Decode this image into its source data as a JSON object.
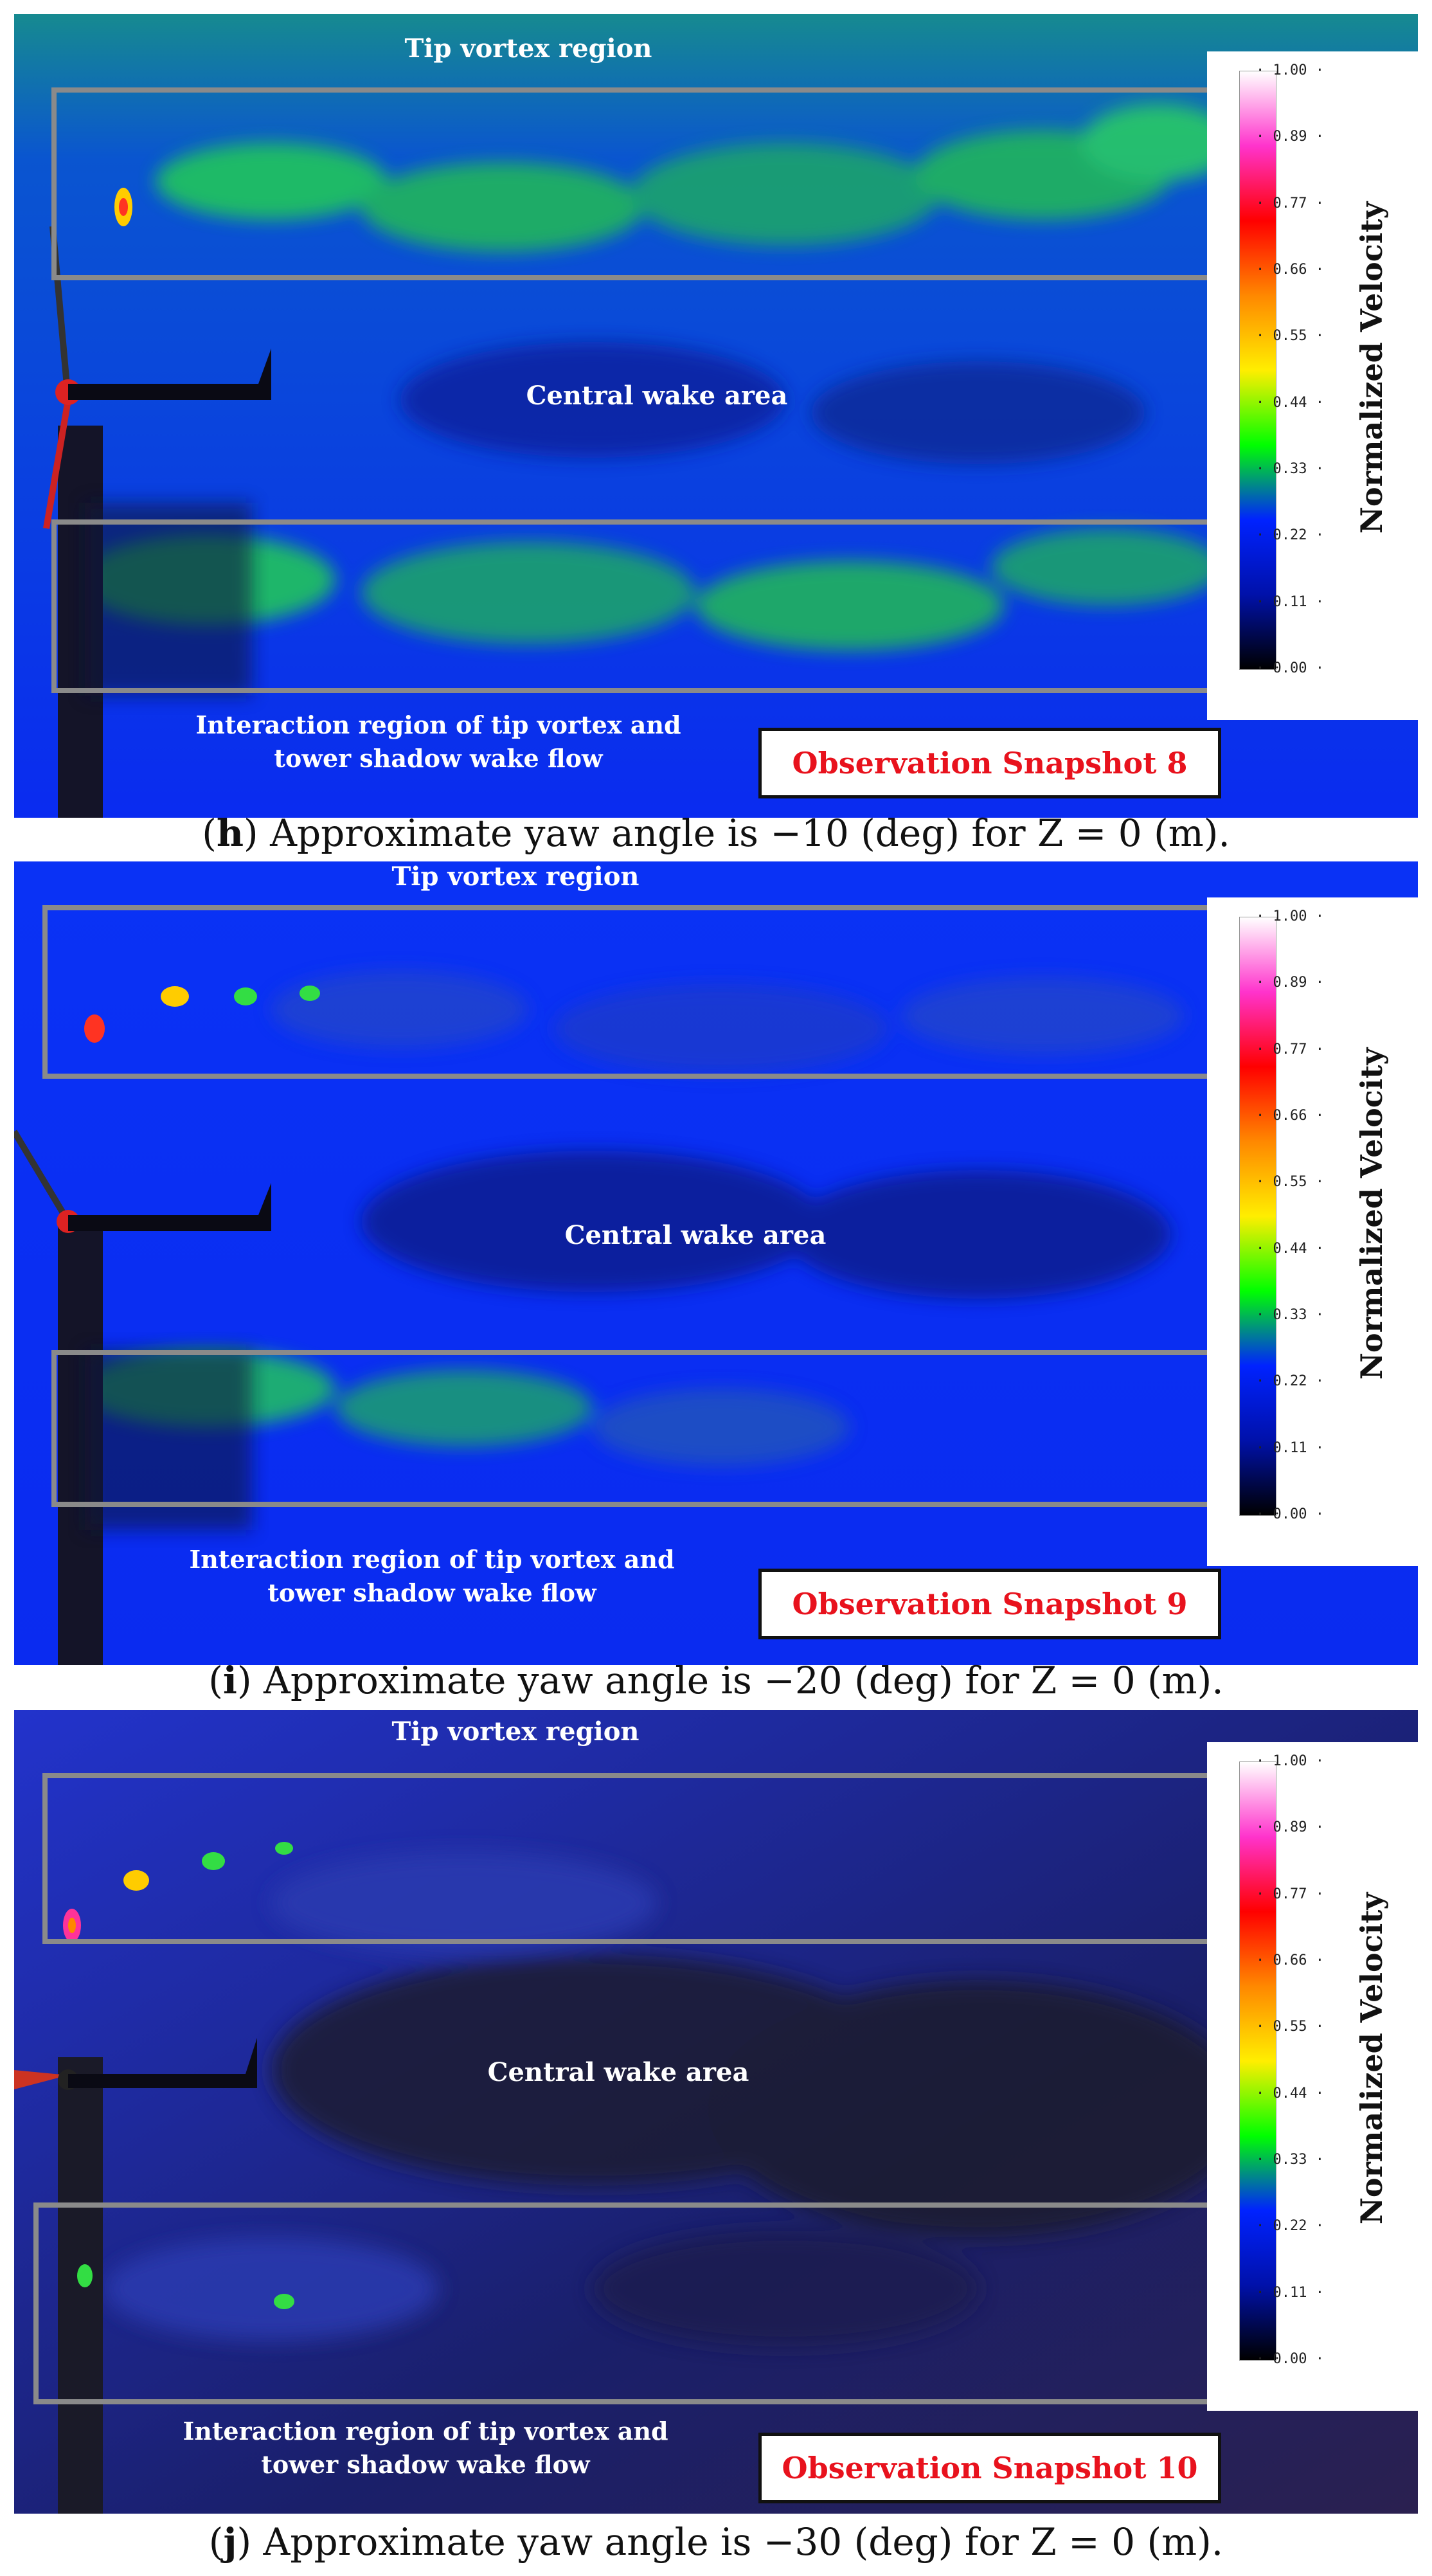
{
  "panels": [
    {
      "labels": {
        "tip": "Tip vortex region",
        "central": "Central wake area",
        "interaction_line1": "Interaction region of tip vortex and",
        "interaction_line2": "tower shadow wake flow"
      },
      "snapshot": "Observation Snapshot 8",
      "caption_letter": "h",
      "caption_text": ") Approximate yaw angle is −10 (deg) for Z = 0 (m).",
      "background_top": "#1a7a8a",
      "background_bottom": "#0a2bf0"
    },
    {
      "labels": {
        "tip": "Tip vortex region",
        "central": "Central wake area",
        "interaction_line1": "Interaction region of tip vortex and",
        "interaction_line2": "tower shadow wake flow"
      },
      "snapshot": "Observation Snapshot 9",
      "caption_letter": "i",
      "caption_text": ") Approximate yaw angle is −20 (deg) for Z = 0 (m).",
      "background_top": "#0a2ef5",
      "background_bottom": "#0a2bf0"
    },
    {
      "labels": {
        "tip": "Tip vortex region",
        "central": "Central wake area",
        "interaction_line1": "Interaction region of tip vortex and",
        "interaction_line2": "tower shadow wake flow"
      },
      "snapshot": "Observation Snapshot 10",
      "caption_letter": "j",
      "caption_text": ") Approximate yaw angle is −30 (deg) for Z = 0 (m).",
      "background_top": "#3a2a7a",
      "background_bottom": "#2233cc"
    }
  ],
  "colorbar": {
    "title": "Normalized Velocity",
    "ticks": [
      "1.00",
      "0.89",
      "0.77",
      "0.66",
      "0.55",
      "0.44",
      "0.33",
      "0.22",
      "0.11",
      "0.00"
    ],
    "colors": [
      "#ffffff",
      "#ff33cc",
      "#ff0000",
      "#ff8800",
      "#ffee00",
      "#00ff00",
      "#0022ff",
      "#0011aa",
      "#000000"
    ]
  }
}
